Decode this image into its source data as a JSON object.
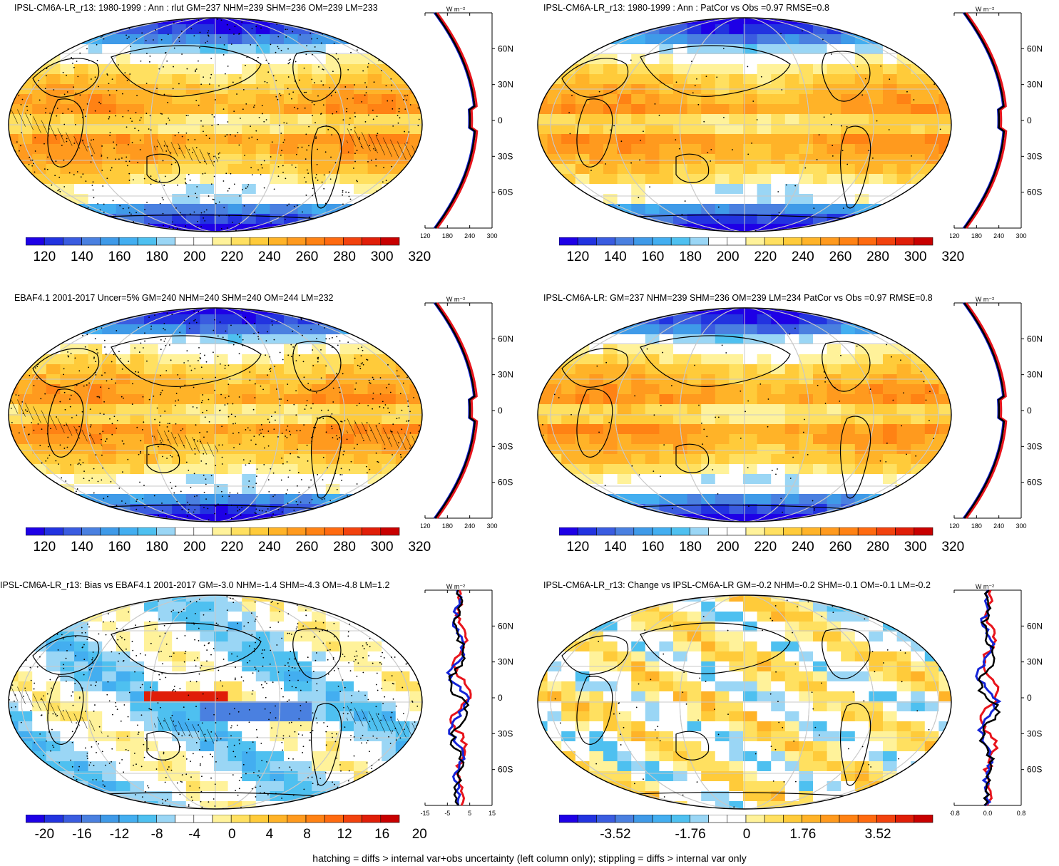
{
  "panels": [
    {
      "id": "p1",
      "title": "IPSL-CM6A-LR_r13: 1980-1999 : Ann : rlut GM=237 NHM=239 SHM=236 OM=239 LM=233",
      "kind": "abs",
      "hatch": true,
      "stipple": "dense",
      "side_ticks": [
        "120",
        "180",
        "240",
        "300"
      ],
      "cb_labels": [
        "120",
        "140",
        "160",
        "180",
        "200",
        "220",
        "240",
        "260",
        "280",
        "300",
        "320"
      ]
    },
    {
      "id": "p2",
      "title": "IPSL-CM6A-LR_r13: 1980-1999 : Ann : PatCor vs Obs =0.97 RMSE=0.8",
      "kind": "abs",
      "hatch": false,
      "stipple": "sparse",
      "side_ticks": [
        "120",
        "180",
        "240",
        "300"
      ],
      "cb_labels": [
        "120",
        "140",
        "160",
        "180",
        "200",
        "220",
        "240",
        "260",
        "280",
        "300",
        "320"
      ]
    },
    {
      "id": "p3",
      "title": "EBAF4.1 2001-2017 Uncer=5% GM=240 NHM=240 SHM=240 OM=244 LM=232",
      "kind": "abs",
      "hatch": true,
      "stipple": "dense",
      "side_ticks": [
        "120",
        "180",
        "240",
        "300"
      ],
      "cb_labels": [
        "120",
        "140",
        "160",
        "180",
        "200",
        "220",
        "240",
        "260",
        "280",
        "300",
        "320"
      ]
    },
    {
      "id": "p4",
      "title": "IPSL-CM6A-LR: GM=237 NHM=239 SHM=236 OM=239 LM=234 PatCor vs Obs =0.97 RMSE=0.8",
      "kind": "abs",
      "hatch": false,
      "stipple": "sparse",
      "side_ticks": [
        "120",
        "180",
        "240",
        "300"
      ],
      "cb_labels": [
        "120",
        "140",
        "160",
        "180",
        "200",
        "220",
        "240",
        "260",
        "280",
        "300",
        "320"
      ]
    },
    {
      "id": "p5",
      "title": "IPSL-CM6A-LR_r13: Bias vs EBAF4.1 2001-2017 GM=-3.0 NHM=-1.4 SHM=-4.3 OM=-4.8 LM=1.2",
      "kind": "bias",
      "hatch": true,
      "stipple": "dense",
      "side_ticks": [
        "-15",
        "-5",
        "5",
        "15"
      ],
      "cb_labels": [
        "-20",
        "-16",
        "-12",
        "-8",
        "-4",
        "0",
        "4",
        "8",
        "12",
        "16",
        "20"
      ]
    },
    {
      "id": "p6",
      "title": "IPSL-CM6A-LR_r13: Change vs IPSL-CM6A-LR GM=-0.2 NHM=-0.2 SHM=-0.1 OM=-0.1 LM=-0.2",
      "kind": "change",
      "hatch": false,
      "stipple": "sparse",
      "side_ticks": [
        "-0.8",
        "0.0",
        "0.8"
      ],
      "cb_labels": [
        "-3.52",
        "-1.76",
        "0",
        "1.76",
        "3.52"
      ]
    }
  ],
  "lat_labels": [
    "60N",
    "30N",
    "0",
    "30S",
    "60S"
  ],
  "units": "W m⁻²",
  "colors": {
    "abs_scale": [
      "#1e00e6",
      "#2233e0",
      "#3a5ce0",
      "#4a80e0",
      "#3f9ae8",
      "#43aef0",
      "#4ec0f0",
      "#9ad6f5",
      "#ffffff",
      "#ffffff",
      "#fff29a",
      "#ffe060",
      "#ffcb3a",
      "#ffb328",
      "#ff9a1e",
      "#ff8214",
      "#ff6a10",
      "#f2420e",
      "#e01e08",
      "#c80000"
    ],
    "diff_scale": [
      "#1e00e6",
      "#2233e0",
      "#3a5ce0",
      "#4a80e0",
      "#3f9ae8",
      "#43aef0",
      "#4ec0f0",
      "#9ad6f5",
      "#ffffff",
      "#ffffff",
      "#fff29a",
      "#ffe060",
      "#ffcb3a",
      "#ffb328",
      "#ff9a1e",
      "#ff8214",
      "#ff6a10",
      "#f2420e",
      "#e01e08",
      "#c80000"
    ],
    "model_line": "#e8141c",
    "obs_line": "#1424d8",
    "mean_line": "#000000"
  },
  "footnote": "hatching = diffs > internal var+obs uncertainty (left column only); stippling = diffs > internal var only"
}
